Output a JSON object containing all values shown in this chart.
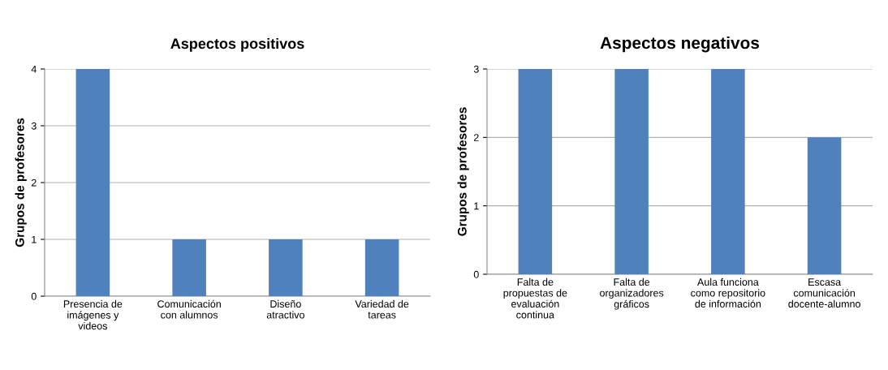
{
  "chart_data": [
    {
      "type": "bar",
      "title": "Aspectos positivos",
      "ylabel": "Grupos de profesores",
      "categories": [
        "Presencia de\nimágenes y\nvideos",
        "Comunicación\ncon alumnos",
        "Diseño\natractivo",
        "Variedad de\ntareas"
      ],
      "values": [
        4,
        1,
        1,
        1
      ],
      "color": "#4f81bd",
      "ylim": [
        0,
        4
      ],
      "yticks": [
        0,
        1,
        2,
        3,
        4
      ],
      "grid": "y",
      "legend": false
    },
    {
      "type": "bar",
      "title": "Aspectos negativos",
      "ylabel": "Grupos de profesores",
      "categories": [
        "Falta de\npropuestas de\nevaluación\ncontinua",
        "Falta de\norganizadores\ngráficos",
        "Aula funciona\ncomo repositorio\nde información",
        "Escasa\ncomunicación\ndocente-alumno"
      ],
      "values": [
        3,
        3,
        3,
        2
      ],
      "color": "#4f81bd",
      "ylim": [
        0,
        3
      ],
      "yticks": [
        0,
        1,
        2,
        3
      ],
      "grid": "y",
      "legend": false
    }
  ]
}
